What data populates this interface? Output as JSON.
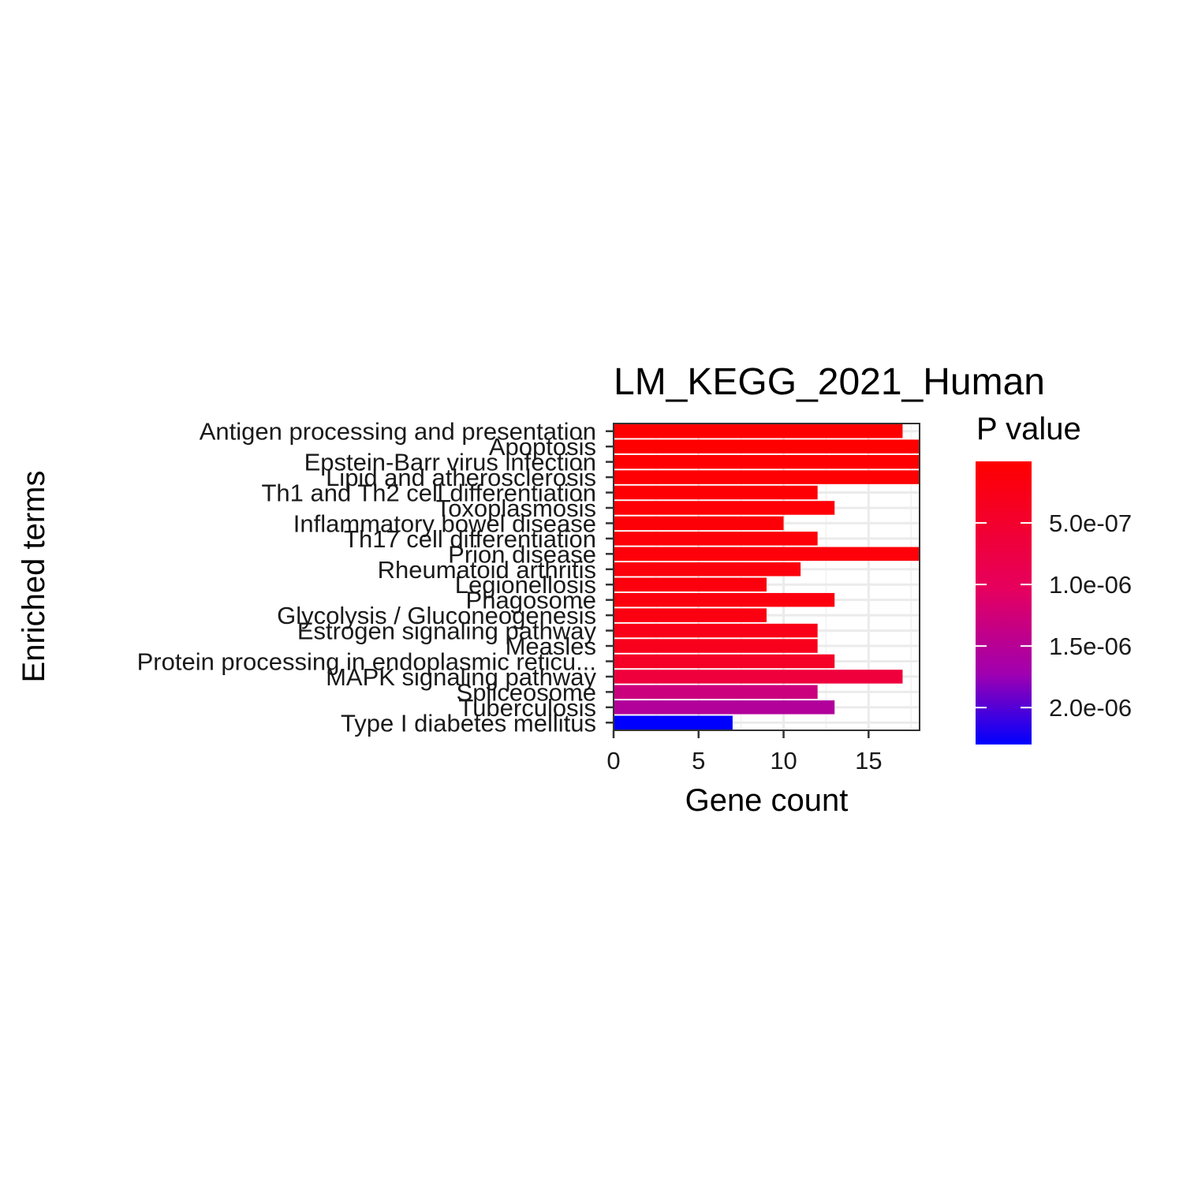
{
  "chart_data": {
    "type": "bar",
    "orientation": "horizontal",
    "title": "LM_KEGG_2021_Human",
    "xlabel": "Gene count",
    "ylabel": "Enriched terms",
    "xlim": [
      0,
      18
    ],
    "x_ticks": [
      0,
      5,
      10,
      15
    ],
    "grid": true,
    "legend_position": "right",
    "legend": {
      "title": "P value",
      "type": "colorbar",
      "low_color": "#ff0000",
      "high_color": "#0000ff",
      "range": [
        0.0,
        2.3e-06
      ],
      "ticks": [
        {
          "value": 5e-07,
          "label": "5.0e-07"
        },
        {
          "value": 1e-06,
          "label": "1.0e-06"
        },
        {
          "value": 1.5e-06,
          "label": "1.5e-06"
        },
        {
          "value": 2e-06,
          "label": "2.0e-06"
        }
      ]
    },
    "categories": [
      "Antigen processing and presentation",
      "Apoptosis",
      "Epstein-Barr virus infection",
      "Lipid and atherosclerosis",
      "Th1 and Th2 cell differentiation",
      "Toxoplasmosis",
      "Inflammatory bowel disease",
      "Th17 cell differentiation",
      "Prion disease",
      "Rheumatoid arthritis",
      "Legionellosis",
      "Phagosome",
      "Glycolysis / Gluconeogenesis",
      "Estrogen signaling pathway",
      "Measles",
      "Protein processing in endoplasmic reticu...",
      "MAPK signaling pathway",
      "Spliceosome",
      "Tuberculosis",
      "Type I diabetes mellitus"
    ],
    "values": [
      17,
      18,
      18,
      18,
      12,
      13,
      10,
      12,
      18,
      11,
      9,
      13,
      9,
      12,
      12,
      13,
      17,
      12,
      13,
      7
    ],
    "p_values": [
      1e-08,
      2e-08,
      3e-08,
      4e-08,
      6e-08,
      8e-08,
      1e-07,
      1.2e-07,
      1.4e-07,
      1.6e-07,
      1.8e-07,
      2e-07,
      2.5e-07,
      3.5e-07,
      4e-07,
      5.5e-07,
      7.5e-07,
      1.3e-06,
      1.55e-06,
      2.3e-06
    ]
  }
}
